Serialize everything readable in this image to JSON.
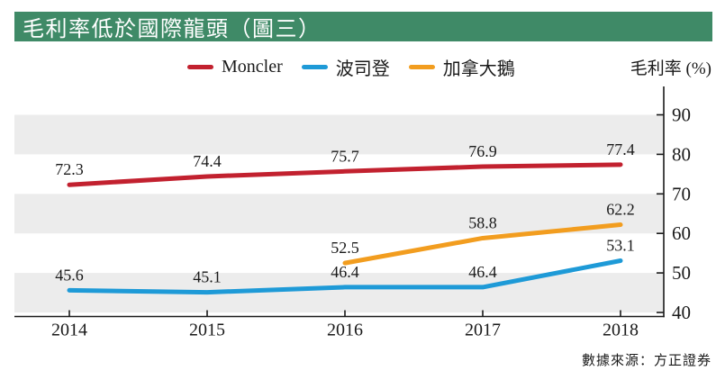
{
  "header": {
    "title": "毛利率低於國際龍頭（圖三）"
  },
  "axis_title": "毛利率 (%)",
  "source": "數據來源：方正證券",
  "colors": {
    "header_bg": "#3f8a67",
    "header_text": "#ffffff",
    "stripe": "#ececec",
    "axis": "#1a1a1a",
    "moncler_red": "#c2212f",
    "bosideng_blue": "#1e9ad7",
    "canadagoose_orange": "#f29d1f"
  },
  "chart_data": {
    "type": "line",
    "title": "毛利率低於國際龍頭（圖三）",
    "categories": [
      "2014",
      "2015",
      "2016",
      "2017",
      "2018"
    ],
    "series": [
      {
        "name": "Moncler",
        "color": "#c2212f",
        "values": [
          72.3,
          74.4,
          75.7,
          76.9,
          77.4
        ]
      },
      {
        "name": "波司登",
        "color": "#1e9ad7",
        "values": [
          45.6,
          45.1,
          46.4,
          46.4,
          53.1
        ]
      },
      {
        "name": "加拿大鵝",
        "color": "#f29d1f",
        "values": [
          null,
          null,
          52.5,
          58.8,
          62.2
        ]
      }
    ],
    "xlabel": "",
    "ylabel": "毛利率 (%)",
    "ylim": [
      40,
      97
    ],
    "yticks": [
      40,
      50,
      60,
      70,
      80,
      90
    ],
    "shaded_bands": [
      [
        40,
        50
      ],
      [
        60,
        70
      ],
      [
        80,
        90
      ]
    ],
    "legend_position": "top",
    "axis_side": "right",
    "data_labels": true
  }
}
